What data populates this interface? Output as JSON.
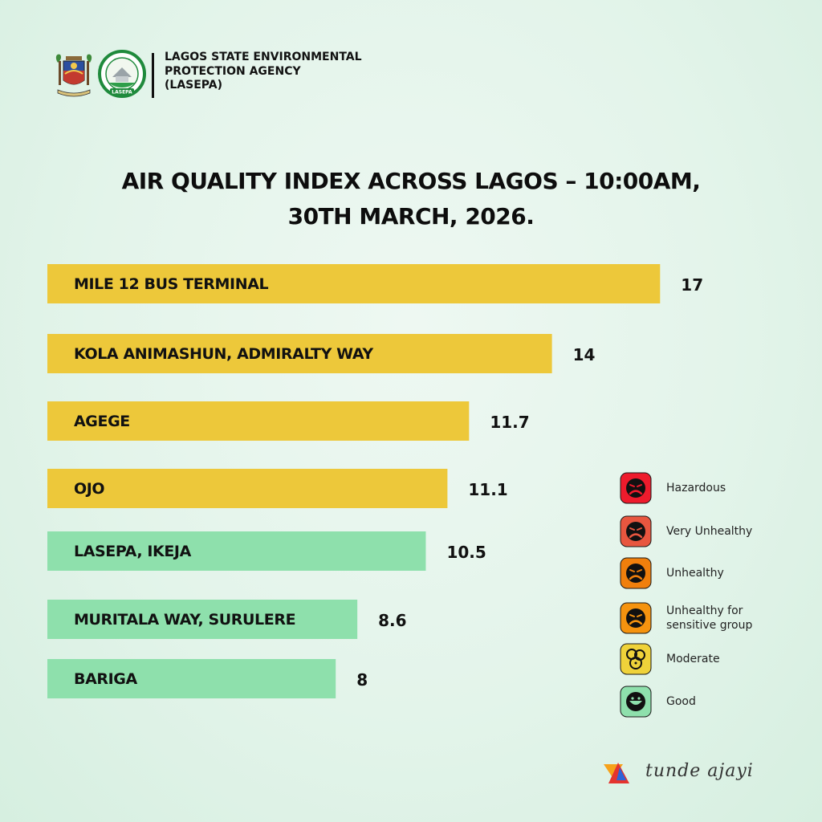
{
  "header": {
    "agency_lines": [
      "LAGOS STATE ENVIRONMENTAL",
      "PROTECTION AGENCY",
      "(LASEPA)"
    ],
    "logo_text": "LASEPA"
  },
  "chart_data": {
    "type": "bar",
    "orientation": "horizontal",
    "title_lines": [
      "AIR QUALITY INDEX ACROSS LAGOS – 10:00AM,",
      "30TH  MARCH, 2026."
    ],
    "categories": [
      "MILE 12 BUS TERMINAL",
      "KOLA ANIMASHUN, ADMIRALTY WAY",
      "AGEGE",
      "OJO",
      "LASEPA, IKEJA",
      "MURITALA WAY, SURULERE",
      "BARIGA"
    ],
    "values": [
      17,
      14,
      11.7,
      11.1,
      10.5,
      8.6,
      8
    ],
    "value_labels": [
      "17",
      "14",
      "11.7",
      "11.1",
      "10.5",
      "8.6",
      "8"
    ],
    "bar_categories": [
      "Moderate",
      "Moderate",
      "Moderate",
      "Moderate",
      "Good",
      "Good",
      "Good"
    ],
    "grid": false,
    "legend_position": "right"
  },
  "legend": {
    "items": [
      {
        "label": "Hazardous",
        "color": "#ee1b2c"
      },
      {
        "label": "Very Unhealthy",
        "color": "#e8563f"
      },
      {
        "label": "Unhealthy",
        "color": "#f07f0c"
      },
      {
        "label": "Unhealthy for sensitive group",
        "color": "#f5930f"
      },
      {
        "label": "Moderate",
        "color": "#efd23a"
      },
      {
        "label": "Good",
        "color": "#8ee0ac"
      }
    ]
  },
  "colors": {
    "moderate": "#edc83a",
    "good": "#8ee0ac",
    "text": "#111111"
  },
  "credit": {
    "text": "tunde ajayi",
    "icon": "tunde-ajayi-logo-icon"
  }
}
